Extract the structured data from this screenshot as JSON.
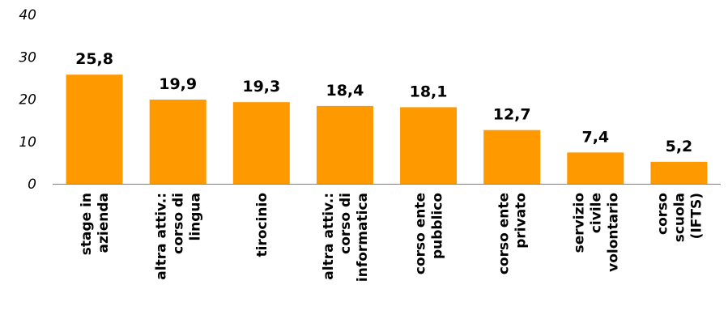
{
  "chart_data": {
    "type": "bar",
    "categories": [
      [
        "stage in",
        "azienda"
      ],
      [
        "altra attiv.:",
        "corso di",
        "lingua"
      ],
      [
        "tirocinio"
      ],
      [
        "altra attiv.:",
        "corso di",
        "informatica"
      ],
      [
        "corso ente",
        "pubblico"
      ],
      [
        "corso ente",
        "privato"
      ],
      [
        "servizio",
        "civile",
        "volontario"
      ],
      [
        "corso",
        "scuola",
        "(IFTS)"
      ]
    ],
    "values": [
      25.8,
      19.9,
      19.3,
      18.4,
      18.1,
      12.7,
      7.4,
      5.2
    ],
    "value_labels": [
      "25,8",
      "19,9",
      "19,3",
      "18,4",
      "18,1",
      "12,7",
      "7,4",
      "5,2"
    ],
    "y_ticks": [
      "0",
      "10",
      "20",
      "30",
      "40"
    ],
    "ylim": [
      0,
      40
    ],
    "bar_color": "#ff9900",
    "axis_color": "#808080",
    "grid": false,
    "legend": false
  }
}
